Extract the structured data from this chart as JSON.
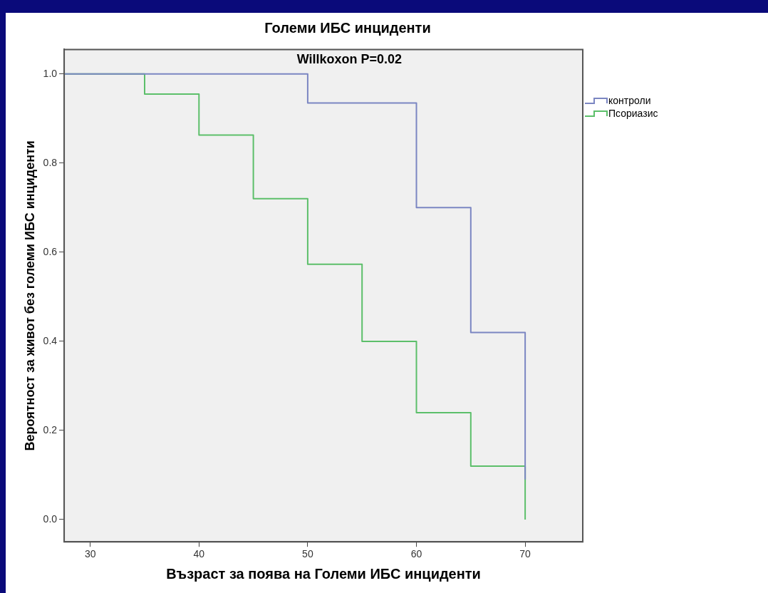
{
  "chart_data": {
    "type": "step",
    "title": "Големи ИБС инциденти",
    "xlabel": "Възраст за поява на Големи ИБС инциденти",
    "ylabel": "Вероятност за живот без големи ИБС инциденти",
    "annotations": [
      "Willkoxon P=0.02"
    ],
    "xlim": [
      27.6,
      75.3
    ],
    "xticks": [
      30,
      40,
      50,
      60,
      70
    ],
    "ylim": [
      -0.05,
      1.055
    ],
    "yticks": [
      {
        "value": 0,
        "label": "0.0"
      },
      0.2,
      0.4,
      0.6,
      0.8,
      {
        "value": 1,
        "label": "1.0"
      }
    ],
    "grid": false,
    "legend": "right",
    "marker": "none",
    "line_style": "solid",
    "series": [
      {
        "name": "контроли",
        "color": "#7b86c2",
        "x": [
          27.6,
          50,
          60,
          65,
          70
        ],
        "values": [
          1.0,
          0.935,
          0.7,
          0.42,
          0.09
        ]
      },
      {
        "name": "Псориазис",
        "color": "#5cbf6a",
        "x": [
          27.6,
          35,
          40,
          45,
          50,
          55,
          60,
          65,
          70
        ],
        "values": [
          1.0,
          0.955,
          0.863,
          0.72,
          0.573,
          0.4,
          0.24,
          0.12,
          0
        ]
      }
    ]
  }
}
